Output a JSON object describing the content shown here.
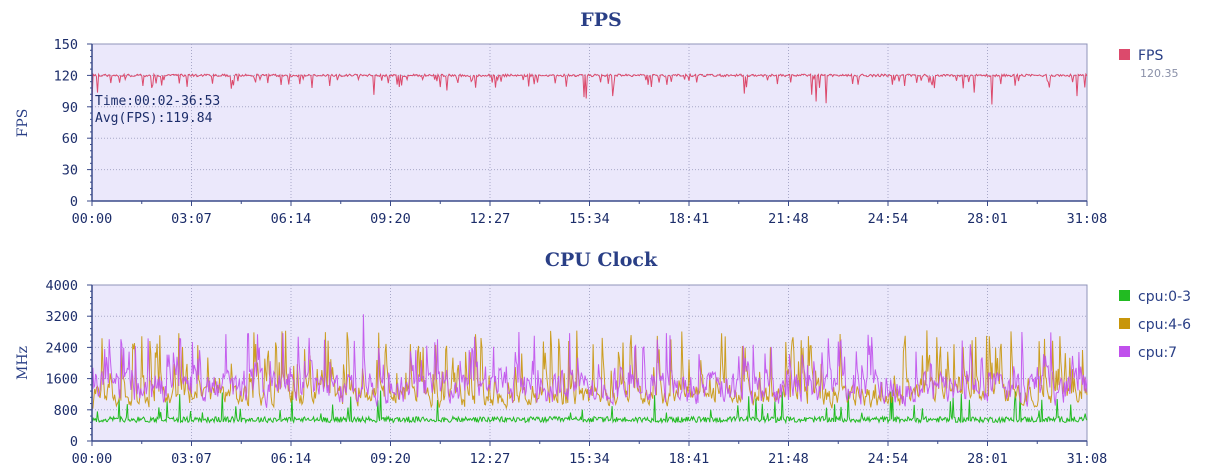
{
  "chart_data": [
    {
      "type": "line",
      "title": "FPS",
      "ylabel": "FPS",
      "xlabel": "",
      "ylim": [
        0,
        150
      ],
      "yticks": [
        "0",
        "30",
        "60",
        "90",
        "120",
        "150"
      ],
      "xticks": [
        "00:00",
        "03:07",
        "06:14",
        "09:20",
        "12:27",
        "15:34",
        "18:41",
        "21:48",
        "24:54",
        "28:01",
        "31:08"
      ],
      "grid": true,
      "annotations": [
        "Time:00:02-36:53",
        "Avg(FPS):119.84"
      ],
      "series": [
        {
          "name": "FPS",
          "legend_value": "120.35",
          "color": "#dc4a6c",
          "baseline": 120,
          "noise": 1.2,
          "dip_rate": 0.12,
          "dip_min": 3,
          "dip_max": 30
        }
      ]
    },
    {
      "type": "line",
      "title": "CPU Clock",
      "ylabel": "MHz",
      "xlabel": "",
      "ylim": [
        0,
        4000
      ],
      "yticks": [
        "0",
        "800",
        "1600",
        "2400",
        "3200",
        "4000"
      ],
      "xticks": [
        "00:00",
        "03:07",
        "06:14",
        "09:20",
        "12:27",
        "15:34",
        "18:41",
        "21:48",
        "24:54",
        "28:01",
        "31:08"
      ],
      "grid": true,
      "series": [
        {
          "name": "cpu:0-3",
          "color": "#22bb22",
          "base": 550,
          "spread": 250,
          "spike_rate": 0.04,
          "spike_max": 1300
        },
        {
          "name": "cpu:4-6",
          "color": "#c8960a",
          "base": 900,
          "spread": 800,
          "spike_rate": 0.12,
          "spike_max": 2850
        },
        {
          "name": "cpu:7",
          "color": "#c050ec",
          "base": 1000,
          "spread": 1200,
          "spike_rate": 0.08,
          "spike_max": 2800,
          "peak": 3250
        }
      ]
    }
  ]
}
